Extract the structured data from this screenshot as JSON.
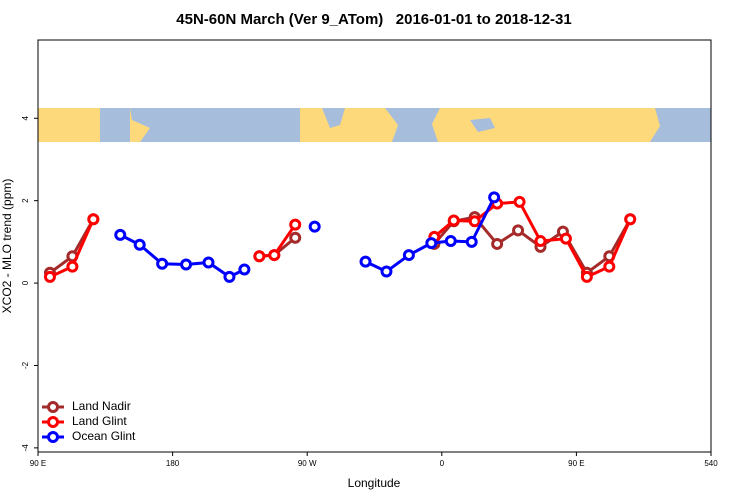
{
  "chart_data": {
    "type": "line",
    "title": "45N-60N March (Ver 9_ATom)   2016-01-01 to 2018-12-31",
    "x_label": "Longitude",
    "y_label": "XCO2 - MLO trend (ppm)",
    "xlim": [
      90,
      540
    ],
    "ylim": [
      -4.1,
      5.9
    ],
    "xticks": [
      {
        "value": 90,
        "label": "90 E"
      },
      180,
      {
        "value": 270,
        "label": "90 W"
      },
      {
        "value": 360,
        "label": "0"
      },
      {
        "value": 450,
        "label": "90 E"
      },
      540
    ],
    "yticks": [
      -4,
      -2,
      0,
      2,
      4
    ],
    "legend": "bottom-left",
    "series": [
      {
        "name": "Land Nadir",
        "color": "#a52a2a",
        "x": [
          98,
          113,
          127,
          null,
          238,
          248,
          262,
          null,
          355,
          368,
          382,
          397,
          411,
          426,
          441,
          457,
          472,
          486
        ],
        "values": [
          0.25,
          0.65,
          1.55,
          null,
          0.65,
          0.68,
          1.1,
          null,
          0.95,
          1.5,
          1.6,
          0.95,
          1.28,
          0.88,
          1.25,
          0.25,
          0.65,
          1.55
        ]
      },
      {
        "name": "Land Glint",
        "color": "#ff0000",
        "x": [
          98,
          113,
          127,
          null,
          238,
          248,
          262,
          null,
          355,
          368,
          382,
          397,
          412,
          426,
          443,
          457,
          472,
          486
        ],
        "values": [
          0.15,
          0.4,
          1.55,
          null,
          0.65,
          0.68,
          1.42,
          null,
          1.12,
          1.52,
          1.5,
          1.93,
          1.97,
          1.02,
          1.08,
          0.15,
          0.4,
          1.55
        ]
      },
      {
        "name": "Ocean Glint",
        "color": "#0000ff",
        "x": [
          145,
          158,
          173,
          189,
          204,
          218,
          228,
          null,
          275,
          null,
          309,
          323,
          338,
          353,
          366,
          380,
          395
        ],
        "values": [
          1.17,
          0.93,
          0.47,
          0.45,
          0.5,
          0.15,
          0.33,
          null,
          1.37,
          null,
          0.52,
          0.28,
          0.68,
          0.97,
          1.02,
          1.0,
          2.08
        ]
      }
    ]
  }
}
